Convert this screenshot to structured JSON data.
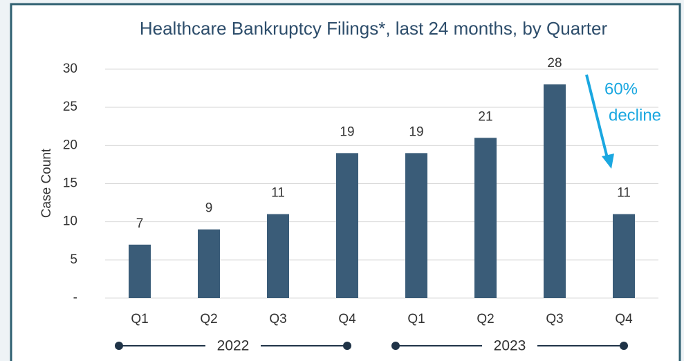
{
  "chart_data": {
    "type": "bar",
    "title": "Healthcare Bankruptcy Filings*, last 24 months, by Quarter",
    "y_label": "Case Count",
    "categories": [
      "Q1",
      "Q2",
      "Q3",
      "Q4",
      "Q1",
      "Q2",
      "Q3",
      "Q4"
    ],
    "values": [
      7,
      9,
      11,
      19,
      19,
      21,
      28,
      11
    ],
    "color": "#3a5c78",
    "ylim": [
      0,
      30
    ],
    "yticks": [
      {
        "value": 0,
        "label": "-"
      },
      5,
      10,
      15,
      20,
      25,
      30
    ],
    "grid": true,
    "year_groups": [
      "2022",
      "2023"
    ],
    "annotation": {
      "lines": [
        "60%",
        "decline"
      ],
      "color": "#1aa7e0"
    }
  }
}
